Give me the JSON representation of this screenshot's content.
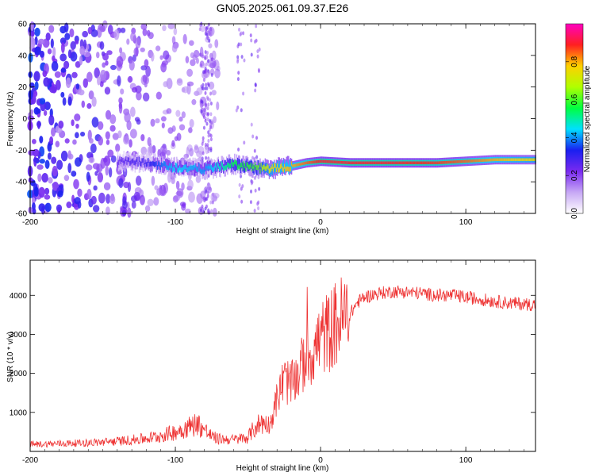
{
  "title": "GN05.2025.061.09.37.E26",
  "chart_data": [
    {
      "type": "heatmap",
      "title": "GN05.2025.061.09.37.E26",
      "xlabel": "Height of straight line (km)",
      "ylabel": "Frequency (Hz)",
      "xlim": [
        -200,
        148
      ],
      "ylim": [
        -60,
        60
      ],
      "x_ticks": [
        -200,
        -100,
        0,
        100
      ],
      "y_ticks": [
        -60,
        -40,
        -20,
        0,
        20,
        40,
        60
      ],
      "colorbar": {
        "label": "Normalized spectral amplitude",
        "range": [
          0,
          1
        ],
        "ticks": [
          0.0,
          0.2,
          0.4,
          0.6,
          0.8
        ],
        "tick_labels": [
          "0.0",
          "0.2",
          "0.4",
          "0.6",
          "0.8"
        ],
        "colors": [
          "#ffffff",
          "#c7a8f5",
          "#7a2af0",
          "#1a20f0",
          "#00e0ff",
          "#00ff40",
          "#b0ff00",
          "#ffd000",
          "#ff2020",
          "#ff00c0"
        ]
      },
      "ridge": {
        "description_values": "dominant frequency vs height",
        "x": [
          -140,
          -120,
          -100,
          -80,
          -60,
          -45,
          -35,
          -20,
          -10,
          0,
          20,
          50,
          80,
          100,
          120,
          148
        ],
        "y": [
          -27,
          -28,
          -31,
          -32,
          -29,
          -31,
          -32,
          -30,
          -28,
          -27,
          -28,
          -28,
          -28,
          -27,
          -26,
          -26
        ],
        "amplitude": [
          0.25,
          0.3,
          0.45,
          0.4,
          0.55,
          0.6,
          0.75,
          0.8,
          0.85,
          0.9,
          0.9,
          0.9,
          0.88,
          0.85,
          0.8,
          0.75
        ]
      }
    },
    {
      "type": "line",
      "xlabel": "Height of straight line (km)",
      "ylabel": "SNR (10 * v/v)",
      "xlim": [
        -200,
        148
      ],
      "ylim": [
        0,
        4900
      ],
      "x_ticks": [
        -200,
        -100,
        0,
        100
      ],
      "y_ticks": [
        1000,
        2000,
        3000,
        4000
      ],
      "series": [
        {
          "name": "SNR",
          "color": "#ee3333",
          "x": [
            -200,
            -180,
            -160,
            -140,
            -120,
            -110,
            -100,
            -90,
            -85,
            -80,
            -75,
            -70,
            -60,
            -50,
            -45,
            -40,
            -35,
            -30,
            -25,
            -20,
            -15,
            -10,
            -5,
            0,
            5,
            10,
            15,
            20,
            25,
            30,
            40,
            50,
            60,
            70,
            80,
            90,
            100,
            110,
            120,
            130,
            140,
            148
          ],
          "y": [
            180,
            200,
            220,
            260,
            330,
            400,
            500,
            640,
            720,
            560,
            380,
            320,
            300,
            360,
            620,
            760,
            680,
            1350,
            1850,
            1700,
            2000,
            2450,
            2550,
            2900,
            3050,
            3250,
            3400,
            3500,
            3800,
            3950,
            4050,
            4100,
            4080,
            4050,
            4000,
            4000,
            3950,
            3900,
            3850,
            3800,
            3780,
            3760
          ]
        }
      ]
    }
  ]
}
